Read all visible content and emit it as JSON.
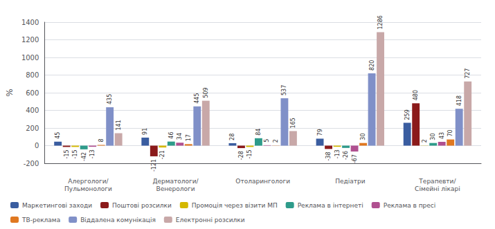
{
  "chart_data": {
    "type": "bar",
    "categories": [
      "Алергологи/\nПульмонологи",
      "Дерматологи/\nВенерологи",
      "Отоларингологи",
      "Педіатри",
      "Терапевти/\nСімейні лікарі"
    ],
    "series": [
      {
        "name": "Маркетингові заходи",
        "color": "#3a5da0",
        "values": [
          45,
          91,
          28,
          79,
          259
        ]
      },
      {
        "name": "Поштові розсилки",
        "color": "#8b1a1a",
        "values": [
          -15,
          -121,
          -28,
          -38,
          480
        ]
      },
      {
        "name": "Промоція через візити МП",
        "color": "#d4b800",
        "values": [
          -15,
          -21,
          -15,
          -13,
          2
        ]
      },
      {
        "name": "Реклама в інтернеті",
        "color": "#2e9b8a",
        "values": [
          -42,
          46,
          84,
          -26,
          30
        ]
      },
      {
        "name": "Реклама в пресі",
        "color": "#b05090",
        "values": [
          -13,
          34,
          5,
          -67,
          43
        ]
      },
      {
        "name": "ТВ-реклама",
        "color": "#e07820",
        "values": [
          8,
          17,
          2,
          30,
          70
        ]
      },
      {
        "name": "Віддалена комунікація",
        "color": "#8090c8",
        "values": [
          435,
          445,
          537,
          820,
          418
        ]
      },
      {
        "name": "Електронні розсилки",
        "color": "#c8a8a8",
        "values": [
          141,
          509,
          165,
          1286,
          727
        ]
      }
    ],
    "ylabel": "%",
    "ylim": [
      -200,
      1400
    ],
    "yticks": [
      -200,
      0,
      200,
      400,
      600,
      800,
      1000,
      1200,
      1400
    ],
    "grid": true,
    "legend": "bottom",
    "data_labels": true
  }
}
